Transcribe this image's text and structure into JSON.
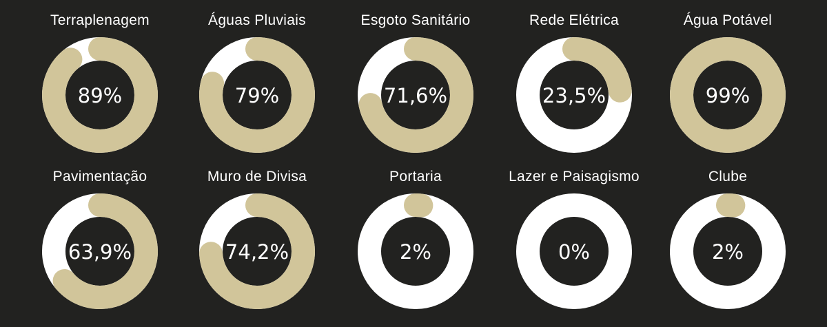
{
  "colors": {
    "background": "#222220",
    "track": "#ffffff",
    "fill": "#d1c59a",
    "text": "#ffffff"
  },
  "chart_data": {
    "type": "donut-progress",
    "items": [
      {
        "label": "Terraplenagem",
        "value": 89,
        "display": "89%"
      },
      {
        "label": "Águas Pluviais",
        "value": 79,
        "display": "79%"
      },
      {
        "label": "Esgoto Sanitário",
        "value": 71.6,
        "display": "71,6%"
      },
      {
        "label": "Rede Elétrica",
        "value": 23.5,
        "display": "23,5%"
      },
      {
        "label": "Água Potável",
        "value": 99,
        "display": "99%"
      },
      {
        "label": "Pavimentação",
        "value": 63.9,
        "display": "63,9%"
      },
      {
        "label": "Muro de Divisa",
        "value": 74.2,
        "display": "74,2%"
      },
      {
        "label": "Portaria",
        "value": 2,
        "display": "2%"
      },
      {
        "label": "Lazer e Paisagismo",
        "value": 0,
        "display": "0%"
      },
      {
        "label": "Clube",
        "value": 2,
        "display": "2%"
      }
    ]
  }
}
